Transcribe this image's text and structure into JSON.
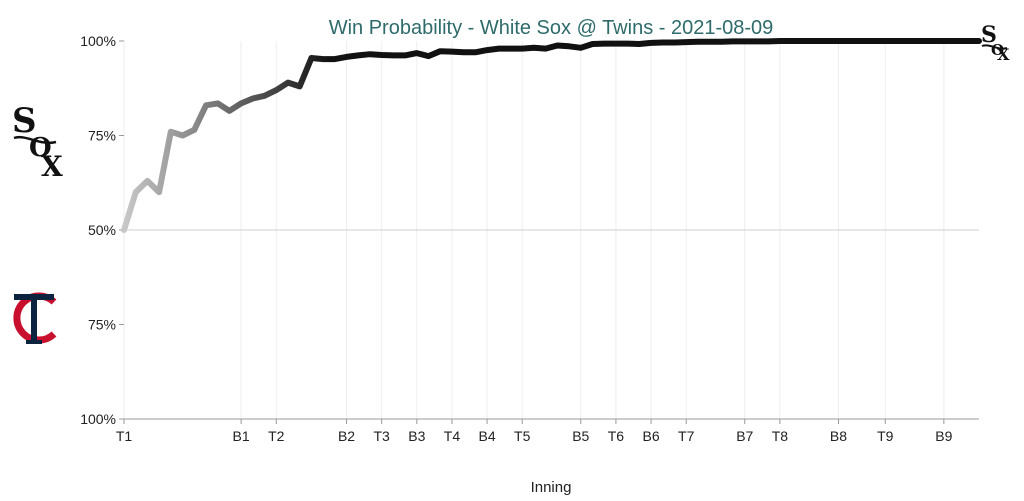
{
  "chart_data": {
    "type": "line",
    "title": "Win Probability - White Sox @ Twins - 2021-08-09",
    "xlabel": "Inning",
    "ylabel": "",
    "x_ticks": [
      "T1",
      "B1",
      "T2",
      "B2",
      "T3",
      "B3",
      "T4",
      "B4",
      "T5",
      "B5",
      "T6",
      "B6",
      "T7",
      "B7",
      "T8",
      "B8",
      "T9",
      "B9"
    ],
    "x_tick_positions": [
      0,
      10,
      13,
      19,
      22,
      25,
      28,
      31,
      34,
      39,
      42,
      45,
      48,
      53,
      56,
      61,
      65,
      70
    ],
    "x_range": [
      0,
      73
    ],
    "y_ticks": [
      {
        "value": 100,
        "label": "100%"
      },
      {
        "value": 75,
        "label": "75%"
      },
      {
        "value": 50,
        "label": "50%"
      },
      {
        "value": -75,
        "label": "75%"
      },
      {
        "value": -100,
        "label": "100%"
      }
    ],
    "ylim": [
      -100,
      100
    ],
    "series": [
      {
        "team_top": "White Sox",
        "team_bottom": "Twins",
        "x": [
          0,
          1,
          2,
          3,
          4,
          5,
          6,
          7,
          8,
          9,
          10,
          11,
          12,
          13,
          14,
          15,
          16,
          17,
          18,
          19,
          20,
          21,
          22,
          23,
          24,
          25,
          26,
          27,
          28,
          29,
          30,
          31,
          32,
          33,
          34,
          35,
          36,
          37,
          38,
          39,
          40,
          41,
          42,
          43,
          44,
          45,
          46,
          47,
          48,
          49,
          50,
          51,
          52,
          53,
          54,
          55,
          56,
          57,
          58,
          59,
          60,
          61,
          62,
          63,
          64,
          65,
          66,
          67,
          68,
          69,
          70,
          71,
          72,
          73
        ],
        "values": [
          50,
          60,
          63,
          60,
          76,
          75,
          76.5,
          83,
          83.5,
          81.5,
          83.5,
          84.8,
          85.5,
          87,
          89,
          88,
          95.5,
          95.2,
          95.2,
          95.8,
          96.2,
          96.5,
          96.3,
          96.2,
          96.2,
          96.8,
          96,
          97.3,
          97.2,
          97,
          97,
          97.6,
          98,
          98,
          98,
          98.2,
          98,
          98.8,
          98.6,
          98.2,
          99.2,
          99.3,
          99.3,
          99.3,
          99.2,
          99.5,
          99.6,
          99.6,
          99.7,
          99.8,
          99.8,
          99.8,
          99.9,
          99.9,
          99.9,
          99.9,
          100,
          100,
          100,
          100,
          100,
          100,
          100,
          100,
          100,
          100,
          100,
          100,
          100,
          100,
          100,
          100,
          100,
          100
        ]
      }
    ],
    "legend": "none",
    "grid": "vertical lines at inning ticks; horizontal line at 50%",
    "colors": {
      "line_start": "#c8c8c8",
      "line_end": "#111111",
      "title": "#2f6b6b",
      "twins_navy": "#0c2340",
      "twins_red": "#c8102e"
    }
  },
  "logos": {
    "white_sox_left": "white-sox-logo",
    "twins_left": "twins-logo",
    "white_sox_end": "white-sox-logo"
  }
}
